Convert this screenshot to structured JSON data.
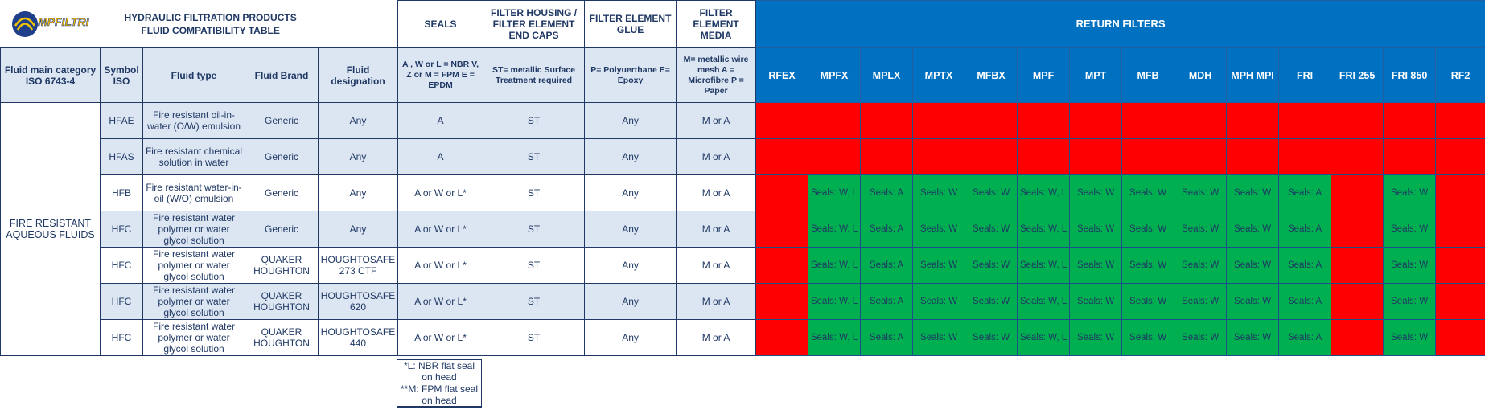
{
  "header": {
    "logo": "MPFILTRI",
    "title": [
      "HYDRAULIC FILTRATION PRODUCTS",
      "FLUID COMPATIBILITY TABLE"
    ],
    "group_headers": [
      "SEALS",
      "FILTER HOUSING / FILTER ELEMENT END CAPS",
      "FILTER ELEMENT GLUE",
      "FILTER ELEMENT MEDIA"
    ],
    "return_filters": "RETURN FILTERS"
  },
  "column_headers": [
    "Fluid main category ISO 6743-4",
    "Symbol ISO",
    "Fluid type",
    "Fluid Brand",
    "Fluid designation",
    "A , W or L = NBR V, Z or M = FPM E = EPDM",
    "ST= metallic Surface Treatment required",
    "P= Polyuerthane E= Epoxy",
    "M= metallic wire mesh A = Microfibre P = Paper"
  ],
  "filters": [
    "RFEX",
    "MPFX",
    "MPLX",
    "MPTX",
    "MFBX",
    "MPF",
    "MPT",
    "MFB",
    "MDH",
    "MPH MPI",
    "FRI",
    "FRI 255",
    "FRI 850",
    "RF2"
  ],
  "compatible_color": "#00b050",
  "incompatible_color": "#ff0000",
  "category": "FIRE RESISTANT AQUEOUS FLUIDS",
  "rows": [
    {
      "cells": [
        "HFAE",
        "Fire resistant oil-in-water (O/W) emulsion",
        "Generic",
        "Any",
        "A",
        "ST",
        "Any",
        "M or A"
      ],
      "filters": [
        null,
        null,
        null,
        null,
        null,
        null,
        null,
        null,
        null,
        null,
        null,
        null,
        null,
        null
      ]
    },
    {
      "cells": [
        "HFAS",
        "Fire resistant chemical solution in water",
        "Generic",
        "Any",
        "A",
        "ST",
        "Any",
        "M or A"
      ],
      "filters": [
        null,
        null,
        null,
        null,
        null,
        null,
        null,
        null,
        null,
        null,
        null,
        null,
        null,
        null
      ]
    },
    {
      "cells": [
        "HFB",
        "Fire resistant water-in-oil (W/O) emulsion",
        "Generic",
        "Any",
        "A or W or L*",
        "ST",
        "Any",
        "M or A"
      ],
      "filters": [
        null,
        "Seals: W, L",
        "Seals: A",
        "Seals: W",
        "Seals: W",
        "Seals: W, L",
        "Seals: W",
        "Seals: W",
        "Seals: W",
        "Seals: W",
        "Seals: A",
        null,
        "Seals: W",
        null
      ]
    },
    {
      "cells": [
        "HFC",
        "Fire resistant water polymer or water glycol solution",
        "Generic",
        "Any",
        "A or W or L*",
        "ST",
        "Any",
        "M or A"
      ],
      "filters": [
        null,
        "Seals: W, L",
        "Seals: A",
        "Seals: W",
        "Seals: W",
        "Seals: W, L",
        "Seals: W",
        "Seals: W",
        "Seals: W",
        "Seals: W",
        "Seals: A",
        null,
        "Seals: W",
        null
      ]
    },
    {
      "cells": [
        "HFC",
        "Fire resistant water polymer or water glycol solution",
        "QUAKER HOUGHTON",
        "HOUGHTOSAFE 273 CTF",
        "A or W or L*",
        "ST",
        "Any",
        "M or A"
      ],
      "filters": [
        null,
        "Seals: W, L",
        "Seals: A",
        "Seals: W",
        "Seals: W",
        "Seals: W, L",
        "Seals: W",
        "Seals: W",
        "Seals: W",
        "Seals: W",
        "Seals: A",
        null,
        "Seals: W",
        null
      ]
    },
    {
      "cells": [
        "HFC",
        "Fire resistant water polymer or water glycol solution",
        "QUAKER HOUGHTON",
        "HOUGHTOSAFE 620",
        "A or W or L*",
        "ST",
        "Any",
        "M or A"
      ],
      "filters": [
        null,
        "Seals: W, L",
        "Seals: A",
        "Seals: W",
        "Seals: W",
        "Seals: W, L",
        "Seals: W",
        "Seals: W",
        "Seals: W",
        "Seals: W",
        "Seals: A",
        null,
        "Seals: W",
        null
      ]
    },
    {
      "cells": [
        "HFC",
        "Fire resistant water polymer or water glycol solution",
        "QUAKER HOUGHTON",
        "HOUGHTOSAFE 440",
        "A or W or L*",
        "ST",
        "Any",
        "M or A"
      ],
      "filters": [
        null,
        "Seals: W, L",
        "Seals: A",
        "Seals: W",
        "Seals: W",
        "Seals: W, L",
        "Seals: W",
        "Seals: W",
        "Seals: W",
        "Seals: W",
        "Seals: A",
        null,
        "Seals: W",
        null
      ]
    }
  ],
  "footnotes": [
    "*L: NBR flat seal on head",
    "**M: FPM flat seal on head"
  ]
}
